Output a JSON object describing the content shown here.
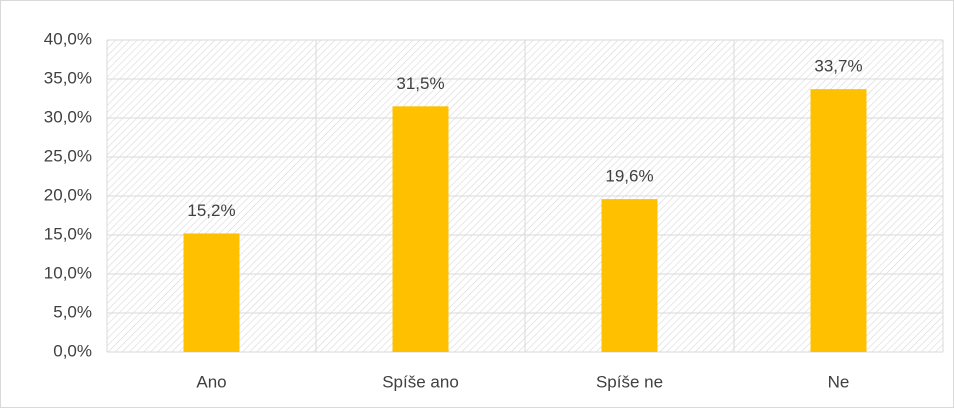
{
  "chart_data": {
    "type": "bar",
    "categories": [
      "Ano",
      "Spíše ano",
      "Spíše ne",
      "Ne"
    ],
    "values": [
      15.2,
      31.5,
      19.6,
      33.7
    ],
    "value_labels": [
      "15,2%",
      "31,5%",
      "19,6%",
      "33,7%"
    ],
    "color": "#ffc000",
    "ylim": [
      0,
      40
    ],
    "yticks": [
      {
        "value": 0,
        "label": "0,0%"
      },
      {
        "value": 5,
        "label": "5,0%"
      },
      {
        "value": 10,
        "label": "10,0%"
      },
      {
        "value": 15,
        "label": "15,0%"
      },
      {
        "value": 20,
        "label": "20,0%"
      },
      {
        "value": 25,
        "label": "25,0%"
      },
      {
        "value": 30,
        "label": "30,0%"
      },
      {
        "value": 35,
        "label": "35,0%"
      },
      {
        "value": 40,
        "label": "40,0%"
      }
    ],
    "grid": true
  }
}
